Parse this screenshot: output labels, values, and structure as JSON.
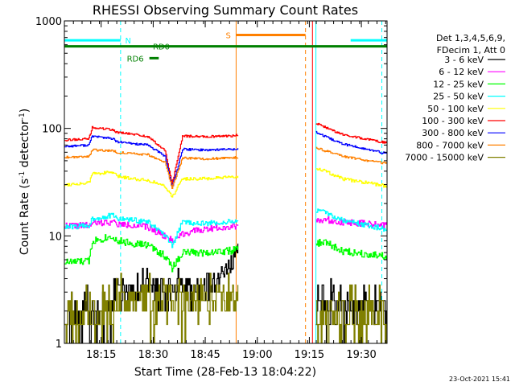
{
  "chart_data": {
    "type": "line",
    "title": "RHESSI Observing Summary Count Rates",
    "xlabel": "Start Time (28-Feb-13 18:04:22)",
    "ylabel_main": "Count Rate (s",
    "ylabel_sup1": "-1",
    "ylabel_mid": " detector",
    "ylabel_sup2": "-1",
    "ylabel_end": ")",
    "footer": "23-Oct-2021 15:41",
    "yscale": "log",
    "ylim": [
      1,
      1000
    ],
    "xlim_minutes": [
      0,
      93
    ],
    "x_ticks": [
      {
        "label": "18:15",
        "minutes": 10.6
      },
      {
        "label": "18:30",
        "minutes": 25.6
      },
      {
        "label": "18:45",
        "minutes": 40.6
      },
      {
        "label": "19:00",
        "minutes": 55.6
      },
      {
        "label": "19:15",
        "minutes": 70.6
      },
      {
        "label": "19:30",
        "minutes": 85.6
      }
    ],
    "y_ticks": [
      {
        "label": "1",
        "value": 1
      },
      {
        "label": "10",
        "value": 10
      },
      {
        "label": "100",
        "value": 100
      },
      {
        "label": "1000",
        "value": 1000
      }
    ],
    "legend_header": [
      "Det 1,3,4,5,6,9,",
      "FDecim 1, Att 0"
    ],
    "series": [
      {
        "name": "3 - 6 keV",
        "color": "#000000",
        "min_val": 1,
        "seed": 11,
        "segments": [
          {
            "x": [
              0,
              13,
              14,
              20,
              24,
              27,
              30,
              34,
              40,
              44,
              48,
              50
            ],
            "y": [
              1.9,
              2.1,
              2.6,
              3.2,
              3.5,
              3.3,
              3.4,
              3.3,
              3.4,
              3.8,
              5.5,
              7.0
            ]
          },
          {
            "x": [
              72.5,
              85,
              93
            ],
            "y": [
              2.3,
              2.3,
              2.4
            ]
          }
        ],
        "noise": 0.17
      },
      {
        "name": "6 - 12 keV",
        "color": "#ff00ff",
        "min_val": 1,
        "seed": 22,
        "segments": [
          {
            "x": [
              0,
              7,
              8,
              14,
              15,
              20,
              24,
              29,
              31,
              34,
              40,
              44,
              48,
              50
            ],
            "y": [
              12.5,
              12.5,
              13,
              13.5,
              12.8,
              12.6,
              12,
              10,
              9,
              10.5,
              11.5,
              12,
              12.2,
              12.5
            ]
          },
          {
            "x": [
              72.5,
              75,
              80,
              93
            ],
            "y": [
              14,
              14.2,
              13.5,
              12.5
            ]
          }
        ],
        "noise": 0.06
      },
      {
        "name": "12 - 25 keV",
        "color": "#00ff00",
        "min_val": 1,
        "seed": 33,
        "segments": [
          {
            "x": [
              0,
              7,
              8,
              14,
              15,
              20,
              24,
              29,
              31,
              34,
              40,
              48,
              50
            ],
            "y": [
              5.7,
              5.8,
              9,
              10,
              9,
              8.5,
              8.2,
              6.5,
              5.0,
              7.0,
              7.0,
              7.3,
              7.5
            ]
          },
          {
            "x": [
              72.5,
              75,
              80,
              93
            ],
            "y": [
              8.5,
              8.8,
              7.2,
              6.5
            ]
          }
        ],
        "noise": 0.07
      },
      {
        "name": "25 - 50 keV",
        "color": "#00ffff",
        "min_val": 1,
        "seed": 44,
        "segments": [
          {
            "x": [
              0,
              7,
              8,
              14,
              15,
              20,
              24,
              29,
              31,
              34,
              40,
              48,
              50
            ],
            "y": [
              12,
              12.5,
              14.5,
              15.5,
              14.5,
              14,
              13.5,
              10,
              8,
              13.5,
              13,
              13.5,
              14
            ]
          },
          {
            "x": [
              72.5,
              75,
              80,
              93
            ],
            "y": [
              17,
              16.5,
              14,
              11.5
            ]
          }
        ],
        "noise": 0.05
      },
      {
        "name": "50 - 100 keV",
        "color": "#ffff00",
        "min_val": 1,
        "seed": 55,
        "segments": [
          {
            "x": [
              0,
              7,
              8,
              14,
              15,
              20,
              24,
              29,
              31,
              34,
              40,
              48,
              50
            ],
            "y": [
              30,
              31,
              38,
              39,
              36,
              34,
              33,
              29,
              23,
              34,
              34,
              35,
              35.5
            ]
          },
          {
            "x": [
              72.5,
              75,
              80,
              93
            ],
            "y": [
              43,
              40,
              34,
              29
            ]
          }
        ],
        "noise": 0.03
      },
      {
        "name": "100 - 300 keV",
        "color": "#ff0000",
        "min_val": 1,
        "seed": 66,
        "segments": [
          {
            "x": [
              0,
              7,
              8,
              14,
              15,
              20,
              24,
              29,
              31,
              34,
              40,
              48,
              50
            ],
            "y": [
              78,
              80,
              102,
              97,
              92,
              88,
              84,
              62,
              30,
              85,
              84,
              85,
              87
            ]
          },
          {
            "x": [
              72.5,
              75,
              80,
              93
            ],
            "y": [
              112,
              103,
              88,
              73
            ]
          }
        ],
        "noise": 0.02
      },
      {
        "name": "300 - 800 keV",
        "color": "#0000ff",
        "min_val": 1,
        "seed": 77,
        "segments": [
          {
            "x": [
              0,
              7,
              8,
              14,
              15,
              20,
              24,
              29,
              31,
              34,
              40,
              48,
              50
            ],
            "y": [
              68,
              70,
              85,
              80,
              75,
              72,
              70,
              55,
              28,
              64,
              63,
              64,
              65
            ]
          },
          {
            "x": [
              72.5,
              75,
              80,
              93
            ],
            "y": [
              92,
              84,
              72,
              58
            ]
          }
        ],
        "noise": 0.02
      },
      {
        "name": "800 - 7000 keV",
        "color": "#ff8000",
        "min_val": 1,
        "seed": 88,
        "segments": [
          {
            "x": [
              0,
              7,
              8,
              14,
              15,
              20,
              24,
              29,
              31,
              34,
              40,
              48,
              50
            ],
            "y": [
              54,
              55,
              63,
              62,
              60,
              58,
              57,
              48,
              28,
              53,
              52,
              53,
              54
            ]
          },
          {
            "x": [
              72.5,
              75,
              80,
              93
            ],
            "y": [
              66,
              62,
              55,
              47
            ]
          }
        ],
        "noise": 0.02
      },
      {
        "name": "7000 - 15000 keV",
        "color": "#808000",
        "min_val": 1,
        "seed": 99,
        "segments": [
          {
            "x": [
              0,
              13,
              14,
              20,
              24,
              29,
              30,
              34,
              40,
              46,
              50
            ],
            "y": [
              1.7,
              1.9,
              2.6,
              2.7,
              2.7,
              2.7,
              2.6,
              2.7,
              2.7,
              2.7,
              2.7
            ]
          },
          {
            "x": [
              72.5,
              93
            ],
            "y": [
              1.9,
              1.9
            ]
          }
        ],
        "noise": 0.3
      }
    ],
    "flag_bars": [
      {
        "label": "N",
        "color": "#00ffff",
        "value": 660,
        "ranges": [
          [
            0,
            16.2
          ],
          [
            82.5,
            93
          ]
        ],
        "label_minutes": 17.5
      },
      {
        "label": "S",
        "color": "#ff8000",
        "value": 740,
        "ranges": [
          [
            49.5,
            69.5
          ]
        ],
        "label_minutes": 46.5
      },
      {
        "label": "RD0",
        "color": "#008000",
        "value": 580,
        "ranges": [
          [
            0,
            93
          ]
        ],
        "label_minutes": 25.5
      },
      {
        "label": "RD6",
        "color": "#008000",
        "value": 450,
        "ranges": [
          [
            24.5,
            27.2
          ]
        ],
        "label_minutes": 18.0
      }
    ],
    "vlines": [
      {
        "minutes": 0,
        "color": "#00ffff",
        "style": "solid"
      },
      {
        "minutes": 16.2,
        "color": "#00ffff",
        "style": "dashed"
      },
      {
        "minutes": 49.5,
        "color": "#ff8000",
        "style": "solid"
      },
      {
        "minutes": 69.5,
        "color": "#ff8000",
        "style": "dashed"
      },
      {
        "minutes": 71.5,
        "color": "#ff0000",
        "style": "solid"
      },
      {
        "minutes": 72.5,
        "color": "#00ffff",
        "style": "solid"
      },
      {
        "minutes": 91.5,
        "color": "#00ffff",
        "style": "dashed"
      }
    ]
  }
}
